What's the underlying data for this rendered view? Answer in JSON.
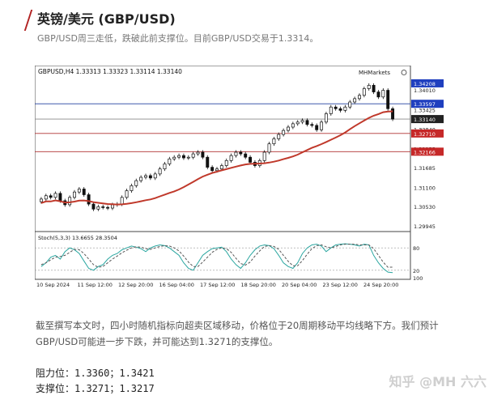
{
  "header": {
    "title": "英镑/美元 (GBP/USD)"
  },
  "subtitle": "GBP/USD周三走低，跌破此前支撑位。目前GBP/USD交易于1.3314。",
  "chart": {
    "ohlc_label": "GBPUSD,H4  1.33313 1.33323 1.33114 1.33140",
    "brand": "MHMarkets",
    "stoch_label": "Stoch(5,3,3) 13.6655 28.3504",
    "colors": {
      "bull": "#ffffff",
      "bear": "#111111",
      "ma": "#c0392b",
      "hline_blue": "#2040a0",
      "hline_red": "#b03030",
      "tag_blue": "#1f3fbf",
      "tag_red": "#c62828"
    }
  },
  "chart_data": {
    "type": "candlestick",
    "symbol": "GBPUSD",
    "timeframe": "H4",
    "ylim": [
      1.299,
      1.344
    ],
    "x_ticks": [
      "10 Sep 2024",
      "11 Sep 12:00",
      "12 Sep 20:00",
      "16 Sep 04:00",
      "17 Sep 12:00",
      "18 Sep 20:00",
      "20 Sep 04:00",
      "23 Sep 12:00",
      "24 Sep 20:00"
    ],
    "y_ticks": [
      "1.34010",
      "1.33425",
      "1.32840",
      "1.32255",
      "1.31685",
      "1.31100",
      "1.30530",
      "1.29945"
    ],
    "price_tags": [
      {
        "value": 1.34208,
        "label": "1.34208",
        "kind": "blue"
      },
      {
        "value": 1.33597,
        "label": "1.33597",
        "kind": "blue"
      },
      {
        "value": 1.3314,
        "label": "1.33140",
        "kind": "dark"
      },
      {
        "value": 1.3271,
        "label": "1.32710",
        "kind": "red"
      },
      {
        "value": 1.32166,
        "label": "1.32166",
        "kind": "red"
      }
    ],
    "horizontal_lines": [
      {
        "value": 1.33597,
        "color": "blue"
      },
      {
        "value": 1.3314,
        "color": "gray"
      },
      {
        "value": 1.3271,
        "color": "red"
      },
      {
        "value": 1.32166,
        "color": "red"
      }
    ],
    "close": [
      1.3075,
      1.3085,
      1.308,
      1.3092,
      1.307,
      1.3058,
      1.308,
      1.3096,
      1.3105,
      1.3088,
      1.306,
      1.3045,
      1.3052,
      1.305,
      1.3048,
      1.3058,
      1.306,
      1.308,
      1.31,
      1.3115,
      1.313,
      1.314,
      1.3145,
      1.3138,
      1.315,
      1.3165,
      1.318,
      1.3195,
      1.32,
      1.3205,
      1.3198,
      1.32,
      1.321,
      1.3215,
      1.32,
      1.317,
      1.316,
      1.3165,
      1.3175,
      1.319,
      1.3205,
      1.3215,
      1.321,
      1.32,
      1.3185,
      1.3175,
      1.319,
      1.3215,
      1.324,
      1.3255,
      1.3268,
      1.328,
      1.329,
      1.33,
      1.3305,
      1.331,
      1.3298,
      1.3295,
      1.3282,
      1.3305,
      1.333,
      1.335,
      1.3345,
      1.334,
      1.335,
      1.3365,
      1.3375,
      1.3385,
      1.3405,
      1.3415,
      1.3395,
      1.338,
      1.34,
      1.3345,
      1.3314
    ],
    "ma_period": 20,
    "stochastic": {
      "params": "5,3,3",
      "k_last": 13.6655,
      "d_last": 28.3504,
      "levels": [
        20,
        80
      ],
      "ylim": [
        0,
        100
      ],
      "k": [
        30,
        40,
        55,
        60,
        50,
        70,
        80,
        75,
        65,
        45,
        25,
        20,
        30,
        35,
        50,
        60,
        65,
        75,
        80,
        85,
        82,
        78,
        70,
        80,
        85,
        88,
        86,
        80,
        70,
        60,
        40,
        25,
        20,
        40,
        60,
        70,
        78,
        80,
        82,
        70,
        50,
        35,
        25,
        40,
        60,
        75,
        85,
        88,
        86,
        78,
        60,
        40,
        30,
        25,
        40,
        65,
        80,
        88,
        90,
        85,
        70,
        80,
        88,
        90,
        91,
        90,
        88,
        85,
        90,
        88,
        60,
        40,
        25,
        15,
        13.67
      ],
      "d": [
        35,
        40,
        48,
        55,
        57,
        60,
        68,
        76,
        75,
        65,
        50,
        35,
        28,
        30,
        40,
        50,
        58,
        67,
        74,
        80,
        83,
        82,
        78,
        76,
        80,
        84,
        86,
        85,
        80,
        72,
        58,
        42,
        30,
        30,
        42,
        55,
        68,
        76,
        80,
        78,
        68,
        52,
        38,
        34,
        42,
        58,
        72,
        84,
        86,
        84,
        76,
        60,
        44,
        32,
        32,
        46,
        63,
        78,
        86,
        88,
        83,
        80,
        84,
        88,
        90,
        90,
        90,
        88,
        88,
        88,
        78,
        60,
        42,
        28,
        28.35
      ]
    }
  },
  "body": "截至撰写本文时，四小时随机指标向超卖区域移动，价格位于20周期移动平均线略下方。我们预计GBP/USD可能进一步下跌，并可能达到1.3271的支撑位。",
  "levels": {
    "resistance": "阻力位：1.3360；1.3421",
    "support": "支撑位：1.3271；1.3217"
  },
  "watermark": "知乎 @MH 六六"
}
